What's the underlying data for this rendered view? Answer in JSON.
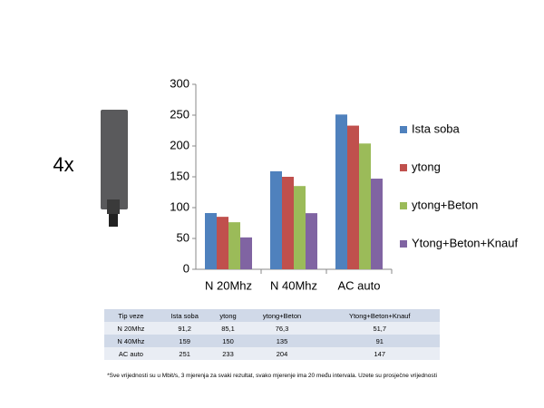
{
  "label": "4x",
  "chart_data": {
    "type": "bar",
    "categories": [
      "N 20Mhz",
      "N 40Mhz",
      "AC auto"
    ],
    "series": [
      {
        "name": "Ista soba",
        "color": "#4f81bd",
        "values": [
          91.2,
          159,
          251
        ]
      },
      {
        "name": "ytong",
        "color": "#c0504d",
        "values": [
          85.1,
          150,
          233
        ]
      },
      {
        "name": "ytong+Beton",
        "color": "#9bbb59",
        "values": [
          76.3,
          135,
          204
        ]
      },
      {
        "name": "Ytong+Beton+Knauf",
        "color": "#8064a2",
        "values": [
          51.7,
          91,
          147
        ]
      }
    ],
    "ylim": [
      0,
      300
    ],
    "yticks": [
      0,
      50,
      100,
      150,
      200,
      250,
      300
    ],
    "grid": false,
    "legend": "right"
  },
  "table": {
    "header": [
      "Tip veze",
      "Ista soba",
      "ytong",
      "ytong+Beton",
      "Ytong+Beton+Knauf"
    ],
    "rows": [
      [
        "N 20Mhz",
        "91,2",
        "85,1",
        "76,3",
        "51,7"
      ],
      [
        "N 40Mhz",
        "159",
        "150",
        "135",
        "91"
      ],
      [
        "AC auto",
        "251",
        "233",
        "204",
        "147"
      ]
    ]
  },
  "footnote": "*Sve vrijednosti su u Mbit/s, 3 mjerenja za svaki rezultat, svako mjerenje ima 20 među intervala. Uzete su prosječne vrijednosti"
}
